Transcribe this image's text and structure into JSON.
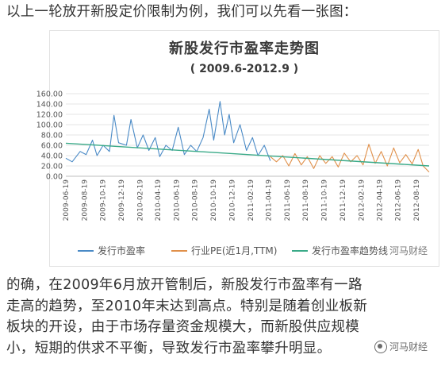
{
  "intro_text": "以上一轮放开新股定价限制为例，我们可以先看一张图：",
  "chart_data": {
    "type": "line",
    "title": "新股发行市盈率走势图",
    "subtitle": "( 2009.6-2012.9 )",
    "x_ticks": [
      "2009-06-19",
      "2009-08-19",
      "2009-10-19",
      "2009-12-19",
      "2010-02-19",
      "2010-04-19",
      "2010-06-19",
      "2010-08-19",
      "2010-10-19",
      "2010-12-19",
      "2011-02-19",
      "2011-04-19",
      "2011-06-19",
      "2011-08-19",
      "2011-10-19",
      "2011-12-19",
      "2012-02-19",
      "2012-04-19",
      "2012-06-19",
      "2012-08-19"
    ],
    "y_ticks": [
      "0.00",
      "20.00",
      "40.00",
      "60.00",
      "80.00",
      "100.00",
      "120.00",
      "140.00",
      "160.00"
    ],
    "ylim": [
      0,
      160
    ],
    "grid": true,
    "legend_position": "bottom",
    "series": [
      {
        "name": "发行市盈率",
        "color": "#4a8ac6",
        "points": [
          [
            "2009-06-19",
            35
          ],
          [
            "2009-07-10",
            28
          ],
          [
            "2009-08-05",
            48
          ],
          [
            "2009-08-25",
            42
          ],
          [
            "2009-09-15",
            70
          ],
          [
            "2009-09-30",
            40
          ],
          [
            "2009-10-20",
            60
          ],
          [
            "2009-11-10",
            48
          ],
          [
            "2009-11-25",
            118
          ],
          [
            "2009-12-10",
            65
          ],
          [
            "2010-01-05",
            60
          ],
          [
            "2010-01-20",
            110
          ],
          [
            "2010-02-10",
            55
          ],
          [
            "2010-03-01",
            80
          ],
          [
            "2010-03-20",
            50
          ],
          [
            "2010-04-10",
            75
          ],
          [
            "2010-04-25",
            38
          ],
          [
            "2010-05-15",
            60
          ],
          [
            "2010-06-05",
            50
          ],
          [
            "2010-06-25",
            95
          ],
          [
            "2010-07-15",
            42
          ],
          [
            "2010-08-05",
            60
          ],
          [
            "2010-08-25",
            48
          ],
          [
            "2010-09-15",
            75
          ],
          [
            "2010-10-05",
            130
          ],
          [
            "2010-10-20",
            70
          ],
          [
            "2010-11-10",
            145
          ],
          [
            "2010-11-25",
            80
          ],
          [
            "2010-12-10",
            120
          ],
          [
            "2010-12-25",
            65
          ],
          [
            "2011-01-15",
            100
          ],
          [
            "2011-02-05",
            50
          ],
          [
            "2011-02-25",
            75
          ],
          [
            "2011-03-15",
            40
          ],
          [
            "2011-04-05",
            60
          ],
          [
            "2011-04-25",
            30
          ]
        ]
      },
      {
        "name": "行业PE(近1月,TTM)",
        "color": "#e0904a",
        "points": [
          [
            "2011-04-25",
            38
          ],
          [
            "2011-05-15",
            28
          ],
          [
            "2011-06-05",
            40
          ],
          [
            "2011-06-25",
            20
          ],
          [
            "2011-07-15",
            44
          ],
          [
            "2011-08-05",
            22
          ],
          [
            "2011-08-25",
            38
          ],
          [
            "2011-09-15",
            15
          ],
          [
            "2011-10-05",
            40
          ],
          [
            "2011-10-25",
            25
          ],
          [
            "2011-11-15",
            38
          ],
          [
            "2011-12-05",
            18
          ],
          [
            "2011-12-25",
            45
          ],
          [
            "2012-01-15",
            28
          ],
          [
            "2012-02-05",
            40
          ],
          [
            "2012-02-25",
            22
          ],
          [
            "2012-03-15",
            62
          ],
          [
            "2012-04-05",
            25
          ],
          [
            "2012-04-25",
            48
          ],
          [
            "2012-05-15",
            20
          ],
          [
            "2012-06-05",
            55
          ],
          [
            "2012-06-25",
            26
          ],
          [
            "2012-07-15",
            42
          ],
          [
            "2012-08-05",
            24
          ],
          [
            "2012-08-25",
            52
          ],
          [
            "2012-09-10",
            20
          ],
          [
            "2012-09-30",
            8
          ]
        ]
      },
      {
        "name": "发行市盈率趋势线",
        "color": "#3aaa88",
        "points": [
          [
            "2009-06-19",
            64
          ],
          [
            "2012-09-30",
            20
          ]
        ]
      }
    ]
  },
  "legend": {
    "watermark": "河马财经"
  },
  "body_lines": [
    "的确，在2009年6月放开管制后，新股发行市盈率有一路",
    "走高的趋势，至2010年末达到高点。特别是随着创业板新",
    "板块的开设，由于市场存量资金规模大，而新股供应规模",
    "小，短期的供求不平衡，导致发行市盈率攀升明显。"
  ],
  "watermark_text": "河马财经"
}
